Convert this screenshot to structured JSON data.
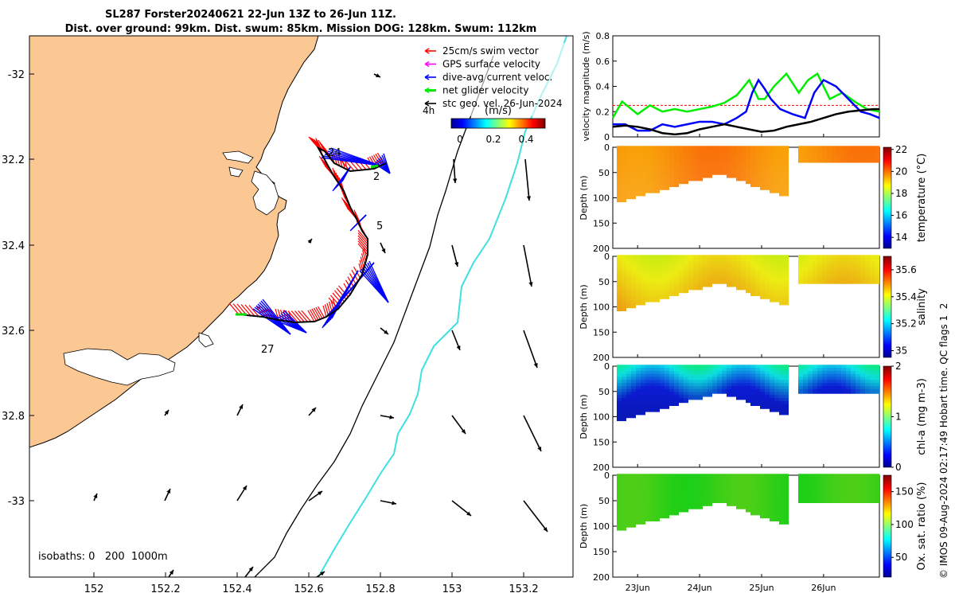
{
  "header": {
    "line1": "SL287 Forster20240621 22-Jun 13Z to 26-Jun 11Z.",
    "line2": "Dist. over ground: 99km. Dist. swum: 85km. Mission DOG: 128km. Swum: 112km"
  },
  "legend": {
    "items": [
      {
        "label": "25cm/s swim vector",
        "color": "#ff0000"
      },
      {
        "label": "GPS surface velocity",
        "color": "#ff00ff"
      },
      {
        "label": "dive-avg current veloc.",
        "color": "#0000ff"
      },
      {
        "label": "net glider velocity",
        "color": "#00ee00"
      },
      {
        "label": "stc geo. vel. 26-Jun-2024",
        "color": "#000000"
      }
    ],
    "hours_label": "4h",
    "colorbar_title": "(m/s)",
    "colorbar_ticks": [
      "0",
      "0.2",
      "0.4"
    ]
  },
  "map": {
    "isobaths_label": "isobaths: 0   200  1000m",
    "lon_ticks": [
      "152",
      "152.2",
      "152.4",
      "152.6",
      "152.8",
      "153",
      "153.2"
    ],
    "lat_ticks": [
      "-32",
      "32.2",
      "32.4",
      "32.6",
      "32.8",
      "-33"
    ],
    "track_day_labels": [
      "24",
      "2",
      "5",
      "27"
    ],
    "colors": {
      "land": "#fbc893",
      "isobath_200": "#000000",
      "isobath_1000": "#40e0e0"
    }
  },
  "chart_data": [
    {
      "type": "line",
      "name": "velocity-magnitude",
      "ylabel": "velocity magnitude (m/s)",
      "ylim": [
        0,
        0.8
      ],
      "ytick_labels": [
        "0",
        "0.2",
        "0.4",
        "0.6",
        "0.8"
      ],
      "x_days": [
        22.6,
        26.9
      ],
      "series": [
        {
          "name": "25cm/s reference",
          "color": "#ff0000",
          "x": [
            22.6,
            26.9
          ],
          "values": [
            0.25,
            0.25
          ]
        },
        {
          "name": "net glider velocity",
          "color": "#00ee00",
          "x": [
            22.6,
            22.75,
            22.9,
            23.0,
            23.2,
            23.4,
            23.6,
            23.8,
            24.0,
            24.2,
            24.4,
            24.6,
            24.8,
            24.95,
            25.05,
            25.2,
            25.4,
            25.6,
            25.75,
            25.9,
            26.1,
            26.3,
            26.5,
            26.7,
            26.9
          ],
          "values": [
            0.15,
            0.28,
            0.22,
            0.18,
            0.25,
            0.2,
            0.22,
            0.2,
            0.22,
            0.24,
            0.27,
            0.33,
            0.45,
            0.3,
            0.3,
            0.4,
            0.5,
            0.35,
            0.45,
            0.5,
            0.3,
            0.35,
            0.28,
            0.22,
            0.2
          ]
        },
        {
          "name": "dive-avg current",
          "color": "#0000ff",
          "x": [
            22.6,
            22.8,
            23.0,
            23.2,
            23.4,
            23.6,
            23.8,
            24.0,
            24.2,
            24.4,
            24.6,
            24.75,
            24.85,
            24.95,
            25.05,
            25.15,
            25.3,
            25.5,
            25.7,
            25.85,
            26.0,
            26.2,
            26.4,
            26.6,
            26.75,
            26.9
          ],
          "values": [
            0.1,
            0.1,
            0.05,
            0.05,
            0.1,
            0.08,
            0.1,
            0.12,
            0.12,
            0.1,
            0.15,
            0.2,
            0.35,
            0.45,
            0.38,
            0.3,
            0.22,
            0.18,
            0.15,
            0.35,
            0.45,
            0.4,
            0.3,
            0.2,
            0.18,
            0.15
          ]
        },
        {
          "name": "stc geo vel",
          "color": "#000000",
          "x": [
            22.6,
            22.8,
            23.0,
            23.2,
            23.4,
            23.6,
            23.8,
            24.0,
            24.2,
            24.4,
            24.6,
            24.8,
            25.0,
            25.2,
            25.4,
            25.6,
            25.8,
            26.0,
            26.2,
            26.4,
            26.6,
            26.8,
            26.9
          ],
          "values": [
            0.08,
            0.09,
            0.08,
            0.06,
            0.03,
            0.02,
            0.03,
            0.06,
            0.08,
            0.1,
            0.08,
            0.06,
            0.04,
            0.05,
            0.08,
            0.1,
            0.12,
            0.15,
            0.18,
            0.2,
            0.21,
            0.22,
            0.22
          ]
        }
      ]
    },
    {
      "type": "heatmap",
      "name": "temperature",
      "ylabel": "Depth (m)",
      "ylim": [
        200,
        0
      ],
      "ytick_labels": [
        "0",
        "50",
        "100",
        "150",
        "200"
      ],
      "colorbar_label": "temperature (°C)",
      "crange": [
        13,
        22.2
      ],
      "cticks": [
        "14",
        "16",
        "18",
        "20",
        "22"
      ]
    },
    {
      "type": "heatmap",
      "name": "salinity",
      "ylabel": "Depth (m)",
      "ylim": [
        200,
        0
      ],
      "ytick_labels": [
        "0",
        "50",
        "100",
        "150",
        "200"
      ],
      "colorbar_label": "salinity",
      "crange": [
        34.95,
        35.7
      ],
      "cticks": [
        "35",
        "35.2",
        "35.4",
        "35.6"
      ]
    },
    {
      "type": "heatmap",
      "name": "chl-a",
      "ylabel": "Depth (m)",
      "ylim": [
        200,
        0
      ],
      "ytick_labels": [
        "0",
        "50",
        "100",
        "150",
        "200"
      ],
      "colorbar_label": "chl-a (mg m-3)",
      "crange": [
        0,
        2
      ],
      "cticks": [
        "0",
        "1",
        "2"
      ]
    },
    {
      "type": "heatmap",
      "name": "oxygen",
      "ylabel": "Depth (m)",
      "ylim": [
        200,
        0
      ],
      "ytick_labels": [
        "0",
        "50",
        "100",
        "150",
        "200"
      ],
      "colorbar_label": "Ox. sat. ratio (%)",
      "crange": [
        20,
        175
      ],
      "cticks": [
        "50",
        "100",
        "150"
      ]
    }
  ],
  "x_axis": {
    "tick_labels": [
      "23Jun",
      "24Jun",
      "25Jun",
      "26Jun"
    ]
  },
  "footer": {
    "credit": "© IMOS 09-Aug-2024 02:17:49 Hobart time. QC flags 1  2"
  }
}
